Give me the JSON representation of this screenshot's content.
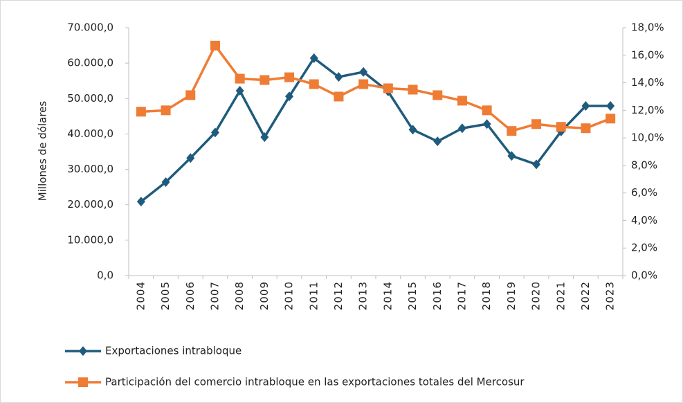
{
  "chart_data": {
    "type": "line",
    "y_label": "Millones de dólares",
    "categories": [
      "2004",
      "2005",
      "2006",
      "2007",
      "2008",
      "2009",
      "2010",
      "2011",
      "2012",
      "2013",
      "2014",
      "2015",
      "2016",
      "2017",
      "2018",
      "2019",
      "2020",
      "2021",
      "2022",
      "2023"
    ],
    "series": [
      {
        "name": "Exportaciones intrabloque",
        "color": "#1f5b7c",
        "marker": "diamond",
        "values": [
          20900,
          26400,
          33200,
          40400,
          52200,
          39100,
          50600,
          61400,
          56100,
          57500,
          52000,
          41200,
          37900,
          41600,
          42800,
          33800,
          31400,
          40700,
          47900,
          47900
        ]
      },
      {
        "name": "Participación del comercio intrabloque en las exportaciones totales del Mercosur",
        "color": "#ef7c35",
        "marker": "square",
        "axis": "y2",
        "values": [
          11.9,
          12.0,
          13.1,
          16.7,
          14.3,
          14.2,
          14.4,
          13.9,
          13.0,
          13.9,
          13.6,
          13.5,
          13.1,
          12.7,
          12.0,
          10.5,
          11.0,
          10.8,
          10.7,
          11.4
        ]
      }
    ],
    "ylim": [
      0,
      70000
    ],
    "yticks": [
      {
        "value": 0,
        "label": "0,0"
      },
      {
        "value": 10000,
        "label": "10.000,0"
      },
      {
        "value": 20000,
        "label": "20.000,0"
      },
      {
        "value": 30000,
        "label": "30.000,0"
      },
      {
        "value": 40000,
        "label": "40.000,0"
      },
      {
        "value": 50000,
        "label": "50.000,0"
      },
      {
        "value": 60000,
        "label": "60.000,0"
      },
      {
        "value": 70000,
        "label": "70.000,0"
      }
    ],
    "y2lim": [
      0,
      18
    ],
    "y2ticks": [
      {
        "value": 0,
        "label": "0,0%"
      },
      {
        "value": 2,
        "label": "2,0%"
      },
      {
        "value": 4,
        "label": "4,0%"
      },
      {
        "value": 6,
        "label": "6,0%"
      },
      {
        "value": 8,
        "label": "8,0%"
      },
      {
        "value": 10,
        "label": "10,0%"
      },
      {
        "value": 12,
        "label": "12,0%"
      },
      {
        "value": 14,
        "label": "14,0%"
      },
      {
        "value": 16,
        "label": "16,0%"
      },
      {
        "value": 18,
        "label": "18,0%"
      }
    ],
    "legend": "bottom",
    "grid": false
  }
}
